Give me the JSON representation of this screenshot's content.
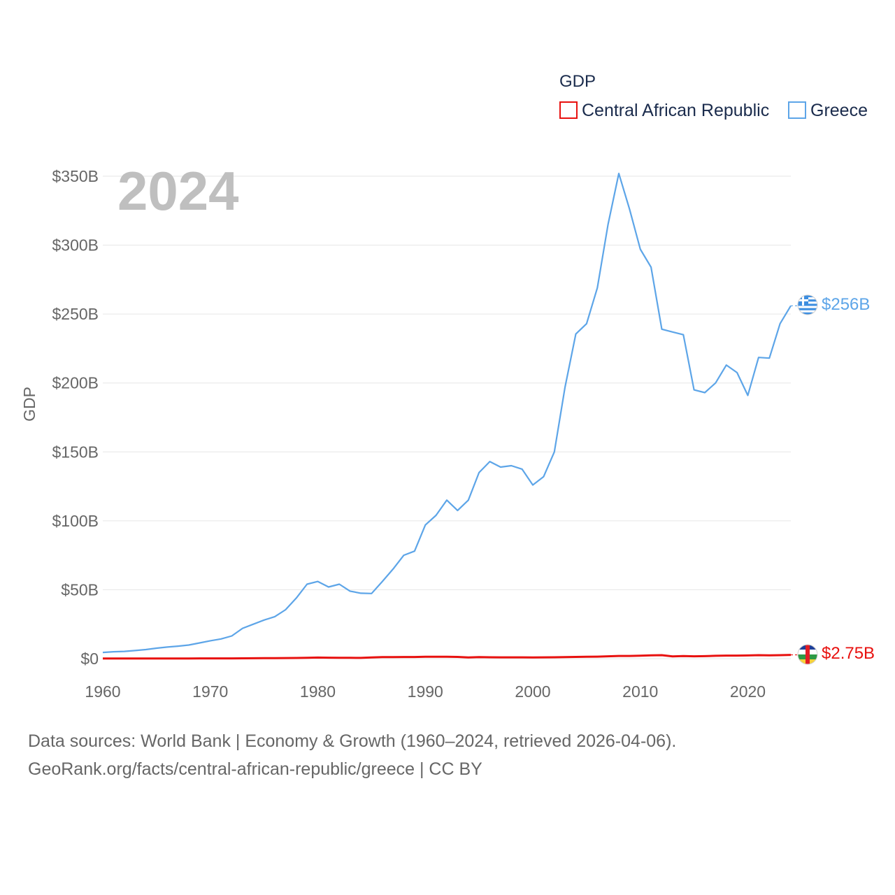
{
  "chart_data": {
    "type": "line",
    "title": "GDP",
    "current_year_label": "2024",
    "ylabel": "GDP",
    "xlabel": "",
    "xlim": [
      1960,
      2024
    ],
    "ylim": [
      0,
      350
    ],
    "y_unit": "billions USD",
    "x_ticks": [
      1960,
      1970,
      1980,
      1990,
      2000,
      2010,
      2020
    ],
    "y_ticks": [
      {
        "value": 0,
        "label": "$0"
      },
      {
        "value": 50,
        "label": "$50B"
      },
      {
        "value": 100,
        "label": "$100B"
      },
      {
        "value": 150,
        "label": "$150B"
      },
      {
        "value": 200,
        "label": "$200B"
      },
      {
        "value": 250,
        "label": "$250B"
      },
      {
        "value": 300,
        "label": "$300B"
      },
      {
        "value": 350,
        "label": "$350B"
      }
    ],
    "legend": {
      "title": "GDP",
      "position": "top-right"
    },
    "x": [
      1960,
      1961,
      1962,
      1963,
      1964,
      1965,
      1966,
      1967,
      1968,
      1969,
      1970,
      1971,
      1972,
      1973,
      1974,
      1975,
      1976,
      1977,
      1978,
      1979,
      1980,
      1981,
      1982,
      1983,
      1984,
      1985,
      1986,
      1987,
      1988,
      1989,
      1990,
      1991,
      1992,
      1993,
      1994,
      1995,
      1996,
      1997,
      1998,
      1999,
      2000,
      2001,
      2002,
      2003,
      2004,
      2005,
      2006,
      2007,
      2008,
      2009,
      2010,
      2011,
      2012,
      2013,
      2014,
      2015,
      2016,
      2017,
      2018,
      2019,
      2020,
      2021,
      2022,
      2023,
      2024
    ],
    "series": [
      {
        "name": "Central African Republic",
        "color": "#e8110f",
        "end_label": "$2.75B",
        "values": [
          0.11,
          0.12,
          0.13,
          0.13,
          0.14,
          0.15,
          0.16,
          0.16,
          0.17,
          0.18,
          0.19,
          0.2,
          0.22,
          0.27,
          0.29,
          0.35,
          0.4,
          0.47,
          0.52,
          0.62,
          0.8,
          0.69,
          0.66,
          0.61,
          0.58,
          0.86,
          1.12,
          1.17,
          1.22,
          1.2,
          1.44,
          1.36,
          1.36,
          1.25,
          0.85,
          1.1,
          1.03,
          0.94,
          0.96,
          0.96,
          0.91,
          0.94,
          0.99,
          1.14,
          1.27,
          1.35,
          1.47,
          1.7,
          1.98,
          2.0,
          2.14,
          2.43,
          2.54,
          1.69,
          1.89,
          1.7,
          1.82,
          2.07,
          2.22,
          2.22,
          2.33,
          2.52,
          2.39,
          2.55,
          2.75
        ]
      },
      {
        "name": "Greece",
        "color": "#5da5e8",
        "end_label": "$256B",
        "values": [
          4.5,
          5.0,
          5.3,
          5.9,
          6.6,
          7.6,
          8.4,
          9.1,
          9.9,
          11.4,
          13.0,
          14.3,
          16.5,
          22.0,
          25.0,
          28.0,
          30.5,
          35.5,
          44.0,
          54.0,
          56.0,
          52.0,
          54.0,
          49.0,
          47.5,
          47.3,
          56.0,
          65.0,
          75.0,
          78.0,
          97.0,
          104.0,
          115.0,
          107.5,
          115.0,
          135.0,
          143.0,
          139.0,
          140.0,
          137.5,
          126.0,
          132.0,
          150.0,
          197.0,
          235.5,
          243.0,
          269.0,
          315.0,
          352.0,
          326.0,
          297.0,
          284.0,
          239.0,
          237.0,
          235.0,
          195.0,
          193.0,
          200.0,
          213.0,
          207.5,
          191.0,
          218.5,
          218.0,
          243.0,
          256.0
        ]
      }
    ]
  },
  "source_line_1": "Data sources: World Bank | Economy & Growth (1960–2024, retrieved 2026-04-06).",
  "source_line_2": "GeoRank.org/facts/central-african-republic/greece | CC BY"
}
